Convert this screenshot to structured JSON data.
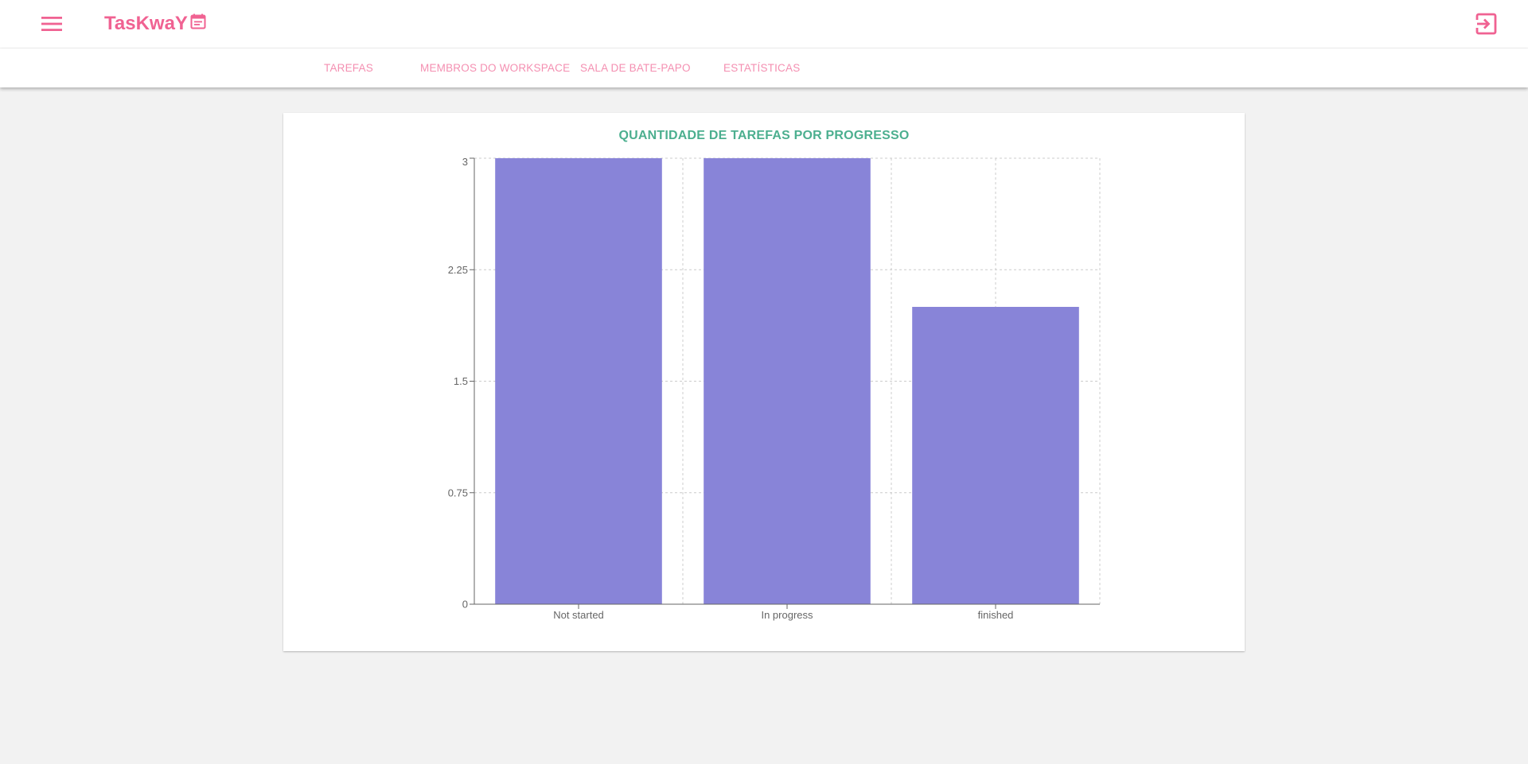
{
  "header": {
    "app_title": "TasKwaY",
    "icons": {
      "menu": "menu-icon",
      "brand": "calendar-icon",
      "logout": "logout-icon"
    },
    "accent_color": "#f06292"
  },
  "tabs": [
    {
      "label": "TAREFAS"
    },
    {
      "label": "MEMBROS DO WORKSPACE"
    },
    {
      "label": "SALA DE BATE-PAPO"
    },
    {
      "label": "ESTATÍSTICAS"
    }
  ],
  "chart_data": {
    "type": "bar",
    "title": "QUANTIDADE DE TAREFAS POR PROGRESSO",
    "categories": [
      "Not started",
      "In progress",
      "finished"
    ],
    "values": [
      3,
      3,
      2
    ],
    "ylim": [
      0,
      3
    ],
    "yticks": [
      0,
      0.75,
      1.5,
      2.25,
      3
    ],
    "ytick_labels": [
      "0",
      "0.75",
      "1.5",
      "2.25",
      "3"
    ],
    "grid": true,
    "bar_color": "#8884d8",
    "title_color": "#4caf8f"
  }
}
